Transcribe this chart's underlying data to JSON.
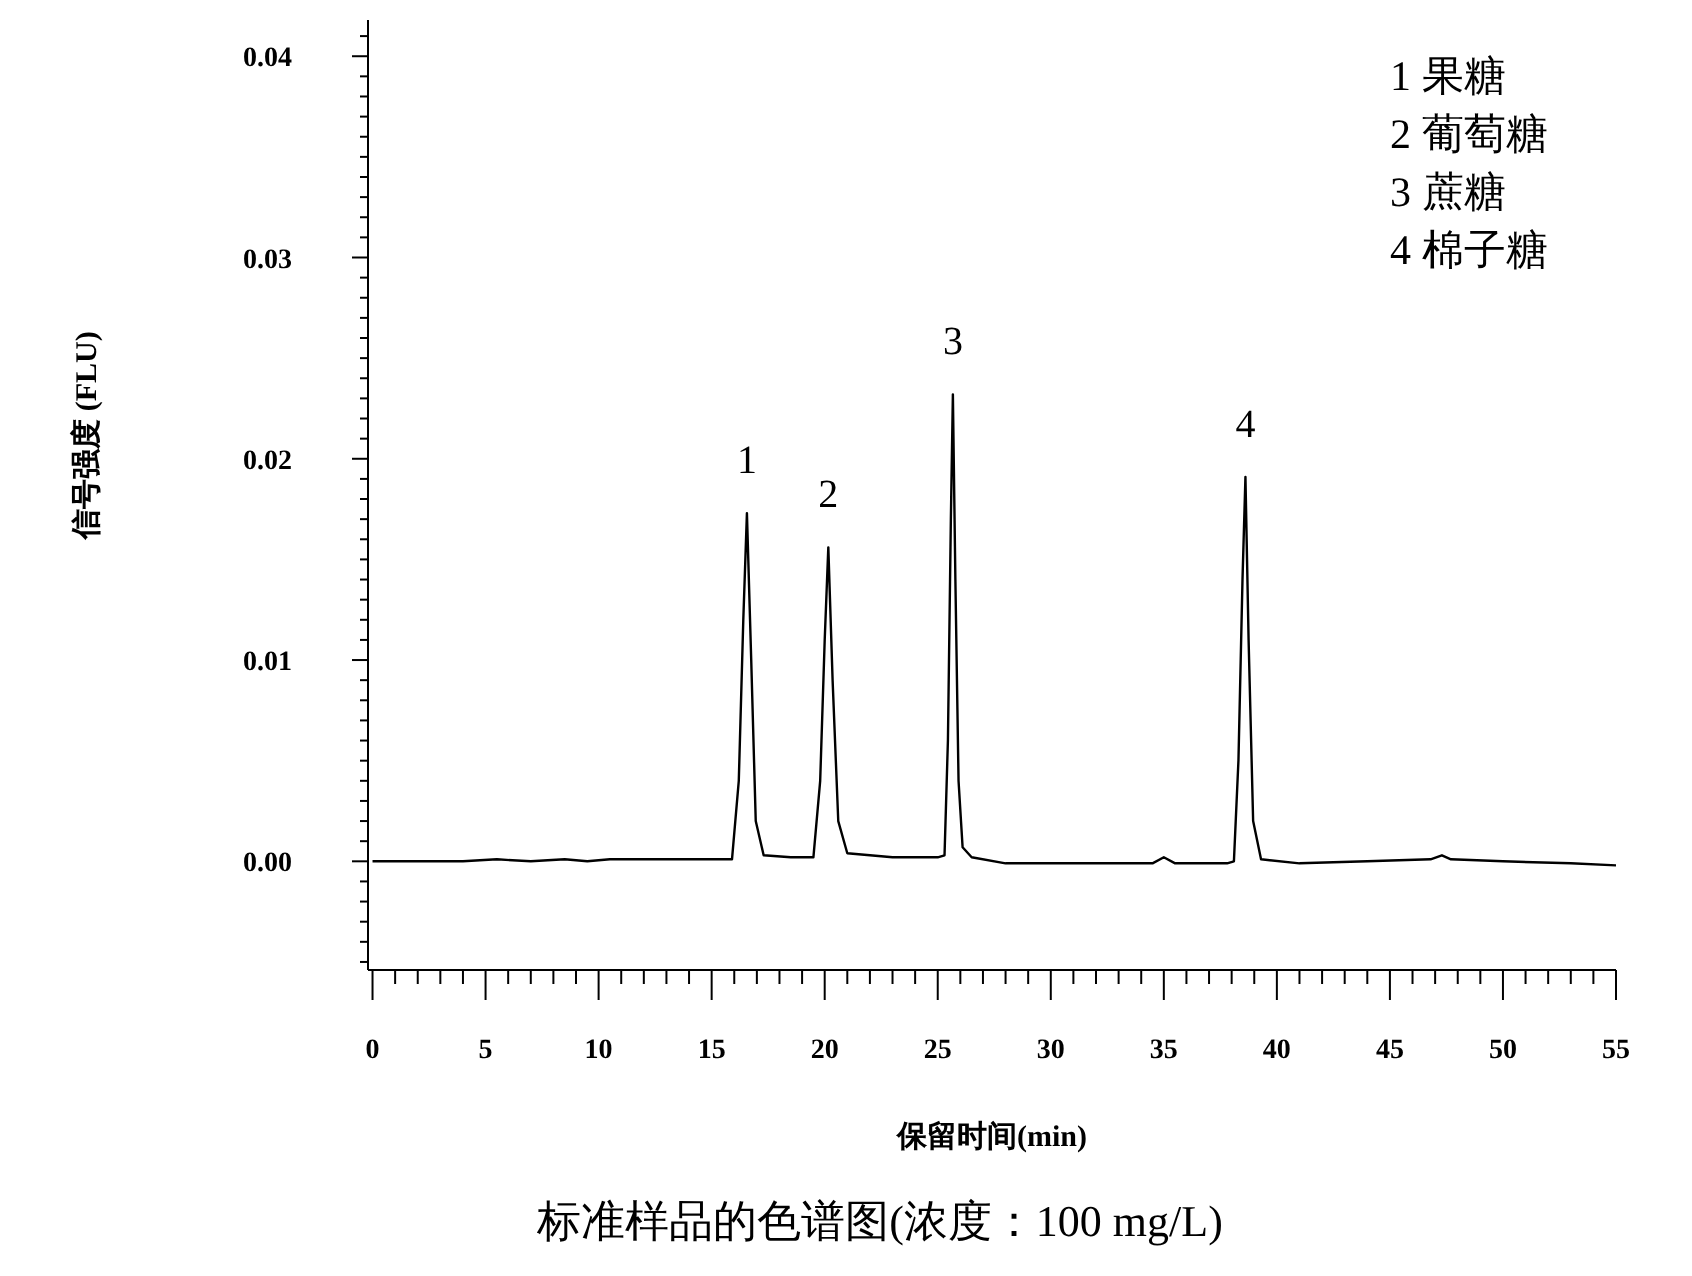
{
  "chart_data": {
    "type": "line",
    "xlabel": "保留时间(min)",
    "ylabel": "信号强度 (FLU)",
    "series": [
      {
        "color": "#000000",
        "x": [
          0,
          2,
          4,
          5.5,
          7,
          8.5,
          9.5,
          10.5,
          12,
          14,
          15.9,
          16.2,
          16.4,
          16.56,
          16.75,
          16.95,
          17.3,
          18.5,
          19.5,
          19.8,
          20.0,
          20.16,
          20.35,
          20.6,
          21.0,
          23,
          25.0,
          25.3,
          25.45,
          25.58,
          25.67,
          25.78,
          25.92,
          26.1,
          26.5,
          28,
          31,
          34.5,
          35,
          35.5,
          37.8,
          38.1,
          38.3,
          38.48,
          38.61,
          38.75,
          38.95,
          39.3,
          41,
          44,
          46.8,
          47.3,
          47.7,
          50,
          53,
          55
        ],
        "values": [
          0,
          0,
          0,
          0.0001,
          0,
          0.0001,
          0,
          0.0001,
          0.0001,
          0.0001,
          0.0001,
          0.004,
          0.012,
          0.0173,
          0.01,
          0.002,
          0.0003,
          0.0002,
          0.0002,
          0.004,
          0.011,
          0.0156,
          0.009,
          0.002,
          0.0004,
          0.0002,
          0.0002,
          0.0003,
          0.006,
          0.017,
          0.0232,
          0.014,
          0.004,
          0.0007,
          0.0002,
          -0.0001,
          -0.0001,
          -0.0001,
          0.0002,
          -0.0001,
          -0.0001,
          0,
          0.005,
          0.014,
          0.0191,
          0.011,
          0.002,
          0.0001,
          -0.0001,
          0,
          0.0001,
          0.0003,
          0.0001,
          0,
          -0.0001,
          -0.0002
        ]
      }
    ],
    "xlim": [
      -0.2,
      55
    ],
    "xticks": [
      {
        "value": 0,
        "label": "0"
      },
      {
        "value": 1,
        "label": null
      },
      {
        "value": 2,
        "label": null
      },
      {
        "value": 3,
        "label": null
      },
      {
        "value": 4,
        "label": null
      },
      {
        "value": 5,
        "label": "5"
      },
      {
        "value": 6,
        "label": null
      },
      {
        "value": 7,
        "label": null
      },
      {
        "value": 8,
        "label": null
      },
      {
        "value": 9,
        "label": null
      },
      {
        "value": 10,
        "label": "10"
      },
      {
        "value": 11,
        "label": null
      },
      {
        "value": 12,
        "label": null
      },
      {
        "value": 13,
        "label": null
      },
      {
        "value": 14,
        "label": null
      },
      {
        "value": 15,
        "label": "15"
      },
      {
        "value": 16,
        "label": null
      },
      {
        "value": 17,
        "label": null
      },
      {
        "value": 18,
        "label": null
      },
      {
        "value": 19,
        "label": null
      },
      {
        "value": 20,
        "label": "20"
      },
      {
        "value": 21,
        "label": null
      },
      {
        "value": 22,
        "label": null
      },
      {
        "value": 23,
        "label": null
      },
      {
        "value": 24,
        "label": null
      },
      {
        "value": 25,
        "label": "25"
      },
      {
        "value": 26,
        "label": null
      },
      {
        "value": 27,
        "label": null
      },
      {
        "value": 28,
        "label": null
      },
      {
        "value": 29,
        "label": null
      },
      {
        "value": 30,
        "label": "30"
      },
      {
        "value": 31,
        "label": null
      },
      {
        "value": 32,
        "label": null
      },
      {
        "value": 33,
        "label": null
      },
      {
        "value": 34,
        "label": null
      },
      {
        "value": 35,
        "label": "35"
      },
      {
        "value": 36,
        "label": null
      },
      {
        "value": 37,
        "label": null
      },
      {
        "value": 38,
        "label": null
      },
      {
        "value": 39,
        "label": null
      },
      {
        "value": 40,
        "label": "40"
      },
      {
        "value": 41,
        "label": null
      },
      {
        "value": 42,
        "label": null
      },
      {
        "value": 43,
        "label": null
      },
      {
        "value": 44,
        "label": null
      },
      {
        "value": 45,
        "label": "45"
      },
      {
        "value": 46,
        "label": null
      },
      {
        "value": 47,
        "label": null
      },
      {
        "value": 48,
        "label": null
      },
      {
        "value": 49,
        "label": null
      },
      {
        "value": 50,
        "label": "50"
      },
      {
        "value": 51,
        "label": null
      },
      {
        "value": 52,
        "label": null
      },
      {
        "value": 53,
        "label": null
      },
      {
        "value": 54,
        "label": null
      },
      {
        "value": 55,
        "label": "55"
      }
    ],
    "ylim": [
      -0.0054,
      0.0418
    ],
    "yticks": [
      {
        "value": -0.005,
        "label": null
      },
      {
        "value": -0.004,
        "label": null
      },
      {
        "value": -0.003,
        "label": null
      },
      {
        "value": -0.002,
        "label": null
      },
      {
        "value": -0.001,
        "label": null
      },
      {
        "value": 0,
        "label": "0.00"
      },
      {
        "value": 0.001,
        "label": null
      },
      {
        "value": 0.002,
        "label": null
      },
      {
        "value": 0.003,
        "label": null
      },
      {
        "value": 0.004,
        "label": null
      },
      {
        "value": 0.005,
        "label": null
      },
      {
        "value": 0.006,
        "label": null
      },
      {
        "value": 0.007,
        "label": null
      },
      {
        "value": 0.008,
        "label": null
      },
      {
        "value": 0.009,
        "label": null
      },
      {
        "value": 0.01,
        "label": "0.01"
      },
      {
        "value": 0.011,
        "label": null
      },
      {
        "value": 0.012,
        "label": null
      },
      {
        "value": 0.013,
        "label": null
      },
      {
        "value": 0.014,
        "label": null
      },
      {
        "value": 0.015,
        "label": null
      },
      {
        "value": 0.016,
        "label": null
      },
      {
        "value": 0.017,
        "label": null
      },
      {
        "value": 0.018,
        "label": null
      },
      {
        "value": 0.019,
        "label": null
      },
      {
        "value": 0.02,
        "label": "0.02"
      },
      {
        "value": 0.021,
        "label": null
      },
      {
        "value": 0.022,
        "label": null
      },
      {
        "value": 0.023,
        "label": null
      },
      {
        "value": 0.024,
        "label": null
      },
      {
        "value": 0.025,
        "label": null
      },
      {
        "value": 0.026,
        "label": null
      },
      {
        "value": 0.027,
        "label": null
      },
      {
        "value": 0.028,
        "label": null
      },
      {
        "value": 0.029,
        "label": null
      },
      {
        "value": 0.03,
        "label": "0.03"
      },
      {
        "value": 0.031,
        "label": null
      },
      {
        "value": 0.032,
        "label": null
      },
      {
        "value": 0.033,
        "label": null
      },
      {
        "value": 0.034,
        "label": null
      },
      {
        "value": 0.035,
        "label": null
      },
      {
        "value": 0.036,
        "label": null
      },
      {
        "value": 0.037,
        "label": null
      },
      {
        "value": 0.038,
        "label": null
      },
      {
        "value": 0.039,
        "label": null
      },
      {
        "value": 0.04,
        "label": "0.04"
      },
      {
        "value": 0.041,
        "label": null
      }
    ],
    "marker": "none",
    "line_style": "solid",
    "annotations": [
      {
        "text": "1",
        "x": 16.56,
        "y": 0.0173
      },
      {
        "text": "2",
        "x": 20.16,
        "y": 0.0156
      },
      {
        "text": "3",
        "x": 25.67,
        "y": 0.0232
      },
      {
        "text": "4",
        "x": 38.61,
        "y": 0.0191
      },
      "1 果糖",
      "2 葡萄糖",
      "3 蔗糖",
      "4 棉子糖",
      "标准样品的色谱图(浓度：100 mg/L)"
    ]
  }
}
